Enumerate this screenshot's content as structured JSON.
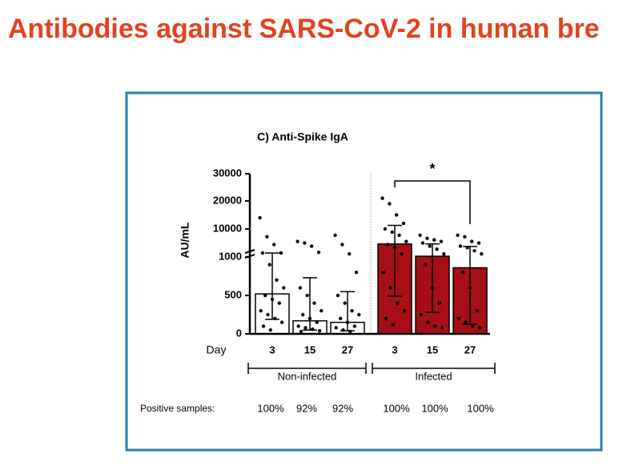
{
  "slide_title": "Antibodies against SARS-CoV-2 in human bre",
  "chart_data": {
    "type": "bar",
    "title": "C) Anti-Spike IgA",
    "y_label": "AU/mL",
    "x_label": "Day",
    "categories": [
      "3",
      "15",
      "27",
      "3",
      "15",
      "27"
    ],
    "groups": [
      "Non-infected",
      "Infected"
    ],
    "group_colors": [
      "#ffffff",
      "#a50f15"
    ],
    "values": [
      520,
      170,
      150,
      5200,
      1250,
      860
    ],
    "error_low": [
      190,
      50,
      40,
      490,
      280,
      125
    ],
    "error_high": [
      2300,
      730,
      550,
      11300,
      5200,
      4400
    ],
    "points": [
      [
        14000,
        7500,
        5000,
        2300,
        2300,
        900,
        700,
        600,
        500,
        450,
        400,
        300,
        250,
        200,
        150,
        100,
        50
      ],
      [
        6000,
        5500,
        4500,
        2500,
        600,
        500,
        400,
        300,
        250,
        200,
        150,
        100,
        80,
        60,
        40,
        30
      ],
      [
        8000,
        5000,
        2000,
        800,
        500,
        400,
        300,
        250,
        200,
        150,
        100,
        80,
        50,
        30
      ],
      [
        21000,
        19000,
        15000,
        12000,
        10000,
        9000,
        8000,
        6000,
        5000,
        4000,
        2000,
        800,
        600,
        400,
        300,
        200,
        120
      ],
      [
        8000,
        7000,
        6500,
        6000,
        5500,
        4500,
        3500,
        2000,
        900,
        600,
        400,
        250,
        150,
        100,
        80
      ],
      [
        8000,
        7500,
        6000,
        5500,
        4500,
        4000,
        3000,
        2000,
        800,
        600,
        300,
        200,
        150,
        100,
        80
      ]
    ],
    "significance": "*",
    "ylim": [
      0,
      30000
    ],
    "yticks": [
      0,
      500,
      1000,
      10000,
      20000,
      30000
    ],
    "positive_samples": {
      "label": "Positive samples:",
      "values": [
        100,
        92,
        92,
        100,
        100,
        100
      ],
      "value_labels": [
        "100%",
        "92%",
        "92%",
        "100%",
        "100%",
        "100%"
      ]
    }
  }
}
